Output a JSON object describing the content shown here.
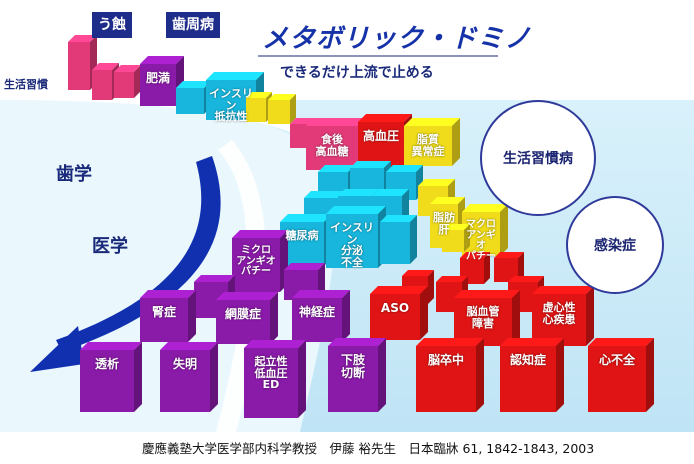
{
  "title": "メタボリック・ドミノ",
  "subtitle": "できるだけ上流で止める",
  "tags": {
    "caries": "う蝕",
    "periodontal": "歯周病"
  },
  "side_labels": {
    "lifestyle": "生活習慣",
    "dentistry": "歯学",
    "medicine": "医学"
  },
  "circles": {
    "lifestyle_disease": "生活習慣病",
    "infection": "感染症"
  },
  "blocks": {
    "obesity": "肥満",
    "insulin_resistance": "インスリン\n抵抗性",
    "postprandial_hyperglycemia": "食後\n高血糖",
    "hypertension": "高血圧",
    "dyslipidemia": "脂質\n異常症",
    "fatty_liver": "脂肪\n肝",
    "macroangiopathy": "マクロ\nアンギオ\nパチー",
    "diabetes": "糖尿病",
    "insulin_secretion_deficiency": "インスリン\n分泌\n不全",
    "microangiopathy": "ミクロ\nアンギオ\nパチー",
    "nephropathy": "腎症",
    "retinopathy": "網膜症",
    "neuropathy": "神経症",
    "aso": "ASO",
    "cerebrovascular": "脳血管\n障害",
    "ischemic_heart": "虚心性\n心疾患",
    "dialysis": "透析",
    "blindness": "失明",
    "ed": "起立性\n低血圧\nED",
    "amputation": "下肢\n切断",
    "stroke": "脳卒中",
    "dementia": "認知症",
    "heart_failure": "心不全"
  },
  "credit": "慶應義塾大学医学部内科学教授　伊藤 裕先生　日本臨牀 61, 1842-1843, 2003",
  "colors": {
    "pink": "#e23a78",
    "purple": "#8a1aa8",
    "cyan": "#18b6dc",
    "yellow": "#f0dc1a",
    "red": "#e01414",
    "navy": "#1f2d8a",
    "arrow": "#1030b0"
  }
}
